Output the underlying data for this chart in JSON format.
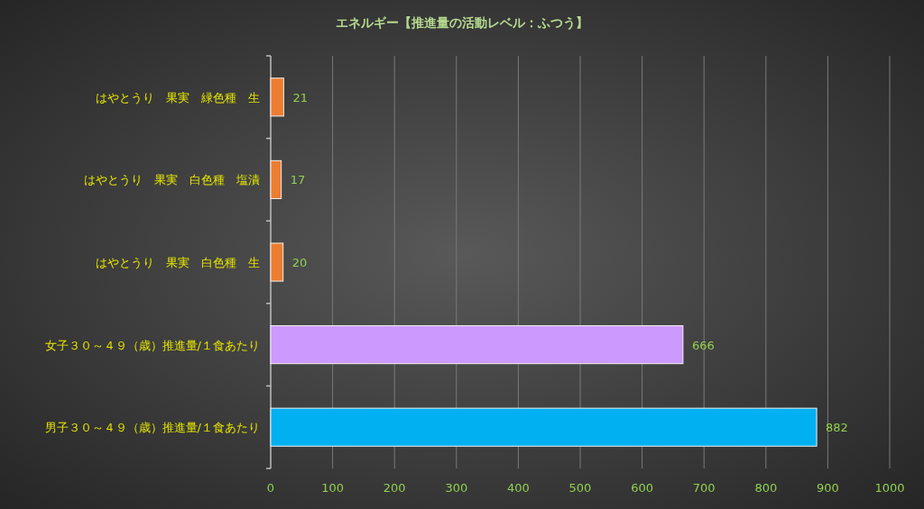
{
  "chart_data": {
    "type": "bar",
    "orientation": "horizontal",
    "title": "エネルギー【推進量の活動レベル：ふつう】",
    "categories": [
      "はやとうり　果実　緑色種　生",
      "はやとうり　果実　白色種　塩漬",
      "はやとうり　果実　白色種　生",
      "女子３０～４９（歳）推進量/１食あたり",
      "男子３０～４９（歳）推進量/１食あたり"
    ],
    "values": [
      21,
      17,
      20,
      666,
      882
    ],
    "colors": [
      "#ed7d31",
      "#ed7d31",
      "#ed7d31",
      "#cc99ff",
      "#00b0f0"
    ],
    "xlim": [
      0,
      1000
    ],
    "xticks": [
      0,
      100,
      200,
      300,
      400,
      500,
      600,
      700,
      800,
      900,
      1000
    ],
    "grid": "x",
    "data_labels": true
  }
}
